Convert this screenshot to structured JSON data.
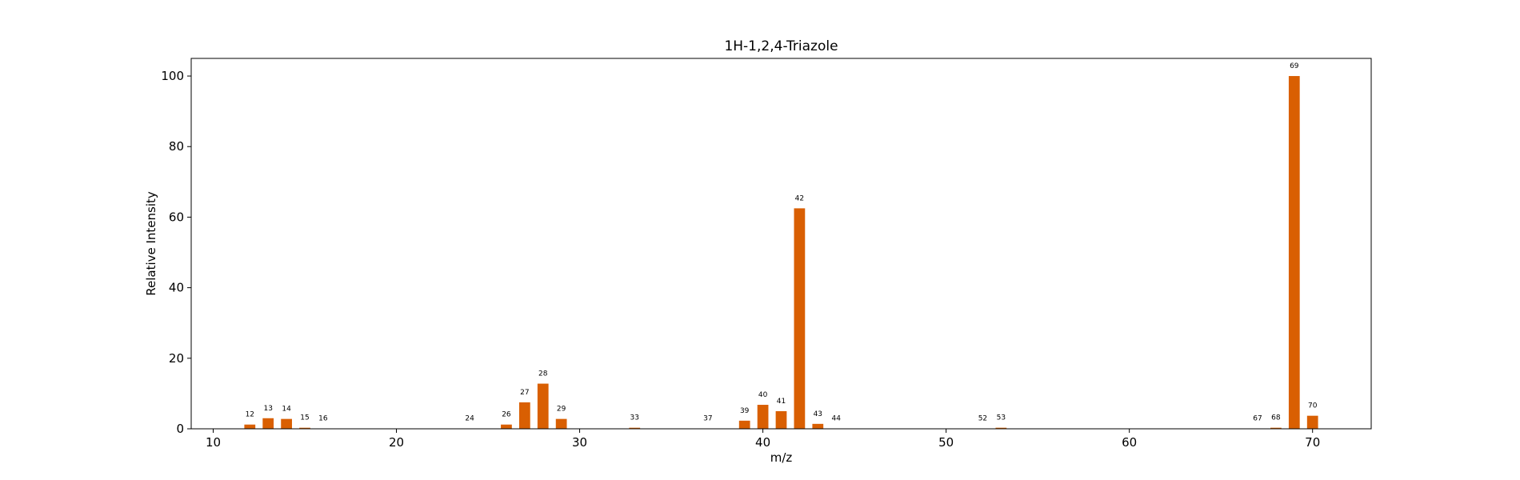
{
  "chart_data": {
    "type": "bar",
    "title": "1H-1,2,4-Triazole",
    "xlabel": "m/z",
    "ylabel": "Relative Intensity",
    "xlim": [
      8.8,
      73.2
    ],
    "ylim": [
      0,
      105
    ],
    "xticks": [
      10,
      20,
      30,
      40,
      50,
      60,
      70
    ],
    "yticks": [
      0,
      20,
      40,
      60,
      80,
      100
    ],
    "grid": false,
    "bar_color": "#d95f02",
    "bar_width": 0.6,
    "peaks": [
      {
        "mz": 12,
        "intensity": 1.2
      },
      {
        "mz": 13,
        "intensity": 3.0
      },
      {
        "mz": 14,
        "intensity": 2.8
      },
      {
        "mz": 15,
        "intensity": 0.3
      },
      {
        "mz": 16,
        "intensity": 0.1
      },
      {
        "mz": 24,
        "intensity": 0.1
      },
      {
        "mz": 26,
        "intensity": 1.2
      },
      {
        "mz": 27,
        "intensity": 7.5
      },
      {
        "mz": 28,
        "intensity": 12.8
      },
      {
        "mz": 29,
        "intensity": 2.8
      },
      {
        "mz": 33,
        "intensity": 0.3
      },
      {
        "mz": 37,
        "intensity": 0.1
      },
      {
        "mz": 39,
        "intensity": 2.3
      },
      {
        "mz": 40,
        "intensity": 6.8
      },
      {
        "mz": 41,
        "intensity": 5.0
      },
      {
        "mz": 42,
        "intensity": 62.5
      },
      {
        "mz": 43,
        "intensity": 1.4
      },
      {
        "mz": 44,
        "intensity": 0.1
      },
      {
        "mz": 52,
        "intensity": 0.1
      },
      {
        "mz": 53,
        "intensity": 0.3
      },
      {
        "mz": 67,
        "intensity": 0.1
      },
      {
        "mz": 68,
        "intensity": 0.3
      },
      {
        "mz": 69,
        "intensity": 100
      },
      {
        "mz": 70,
        "intensity": 3.7
      }
    ]
  }
}
